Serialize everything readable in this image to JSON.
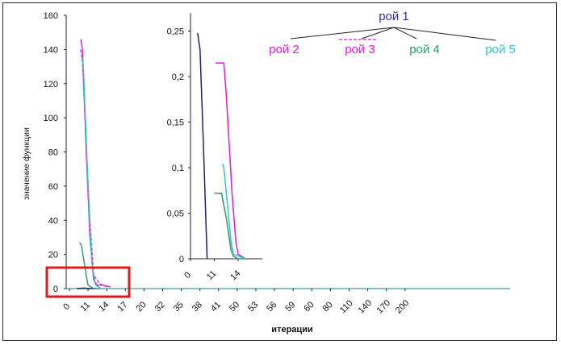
{
  "chart_data": [
    {
      "type": "line",
      "xlabel": "итерации",
      "ylabel": "значение функции",
      "categories": [
        "0",
        "11",
        "14",
        "17",
        "20",
        "32",
        "35",
        "38",
        "41",
        "50",
        "53",
        "56",
        "59",
        "60",
        "80",
        "110",
        "140",
        "170",
        "200"
      ],
      "ylim": [
        0,
        160
      ],
      "yticks": [
        "0",
        "20",
        "40",
        "60",
        "80",
        "100",
        "120",
        "140",
        "160"
      ],
      "series": [
        {
          "name": "рой 1",
          "color": "#1f1f7a",
          "x": [
            0.4,
            0.8,
            1.0,
            1.4
          ],
          "y": [
            0,
            0.3,
            0,
            0
          ]
        },
        {
          "name": "рой 2",
          "color": "#e01ad8",
          "x": [
            0.6,
            0.7,
            0.9,
            1.1,
            1.3,
            1.5,
            1.8,
            2.2
          ],
          "y": [
            146,
            140,
            80,
            30,
            5,
            2,
            2,
            1
          ]
        },
        {
          "name": "рой 3",
          "color": "#c040c0",
          "x": [
            0.6,
            0.7,
            0.9,
            1.1,
            1.3,
            1.6,
            2.0
          ],
          "y": [
            140,
            132,
            85,
            40,
            8,
            3,
            1
          ]
        },
        {
          "name": "рой 4",
          "color": "#2a9a6a",
          "x": [
            0.55,
            0.65,
            0.9,
            1.0,
            1.3,
            1.7
          ],
          "y": [
            27,
            25,
            8,
            2,
            0,
            0
          ]
        },
        {
          "name": "рой 5",
          "color": "#30c4c8",
          "x": [
            0.65,
            0.75,
            1.0,
            1.2,
            1.4,
            1.7
          ],
          "y": [
            137,
            130,
            60,
            15,
            2,
            0
          ]
        }
      ],
      "grid": false,
      "legend": "top-right"
    },
    {
      "type": "line",
      "inset": true,
      "xlabel": "",
      "ylabel": "",
      "categories": [
        "0",
        "11",
        "14"
      ],
      "ylim": [
        0,
        0.27
      ],
      "yticks": [
        "0",
        "0,05",
        "0,1",
        "0,15",
        "0,2",
        "0,25"
      ],
      "series": [
        {
          "name": "рой 1",
          "color": "#1f1f7a",
          "x": [
            0.3,
            0.4,
            0.55,
            0.7
          ],
          "y": [
            0.248,
            0.23,
            0.12,
            0
          ]
        },
        {
          "name": "рой 2",
          "color": "#e01ad8",
          "x": [
            1.05,
            1.4,
            1.5,
            1.75,
            1.9,
            2.0,
            2.3
          ],
          "y": [
            0.215,
            0.215,
            0.18,
            0.07,
            0.02,
            0.005,
            0
          ]
        },
        {
          "name": "рой 4",
          "color": "#2a9a6a",
          "x": [
            1.0,
            1.3,
            1.5,
            1.7,
            1.8,
            2.0,
            2.3
          ],
          "y": [
            0.072,
            0.072,
            0.045,
            0.01,
            0.003,
            0,
            0
          ]
        },
        {
          "name": "рой 5",
          "color": "#30c4c8",
          "x": [
            1.35,
            1.4,
            1.55,
            1.7,
            1.8,
            2.3
          ],
          "y": [
            0.104,
            0.1,
            0.06,
            0.02,
            0.005,
            0
          ]
        }
      ],
      "grid": false
    }
  ],
  "legend": {
    "items": [
      {
        "label": "рой 1",
        "color": "#3a2aa0"
      },
      {
        "label": "рой 2",
        "color": "#e01ad8"
      },
      {
        "label": "рой 3",
        "color": "#e01ad8"
      },
      {
        "label": "рой 4",
        "color": "#2a9a6a"
      },
      {
        "label": "рой 5",
        "color": "#30c4c8"
      }
    ]
  },
  "highlight_color": "#e01b1b"
}
